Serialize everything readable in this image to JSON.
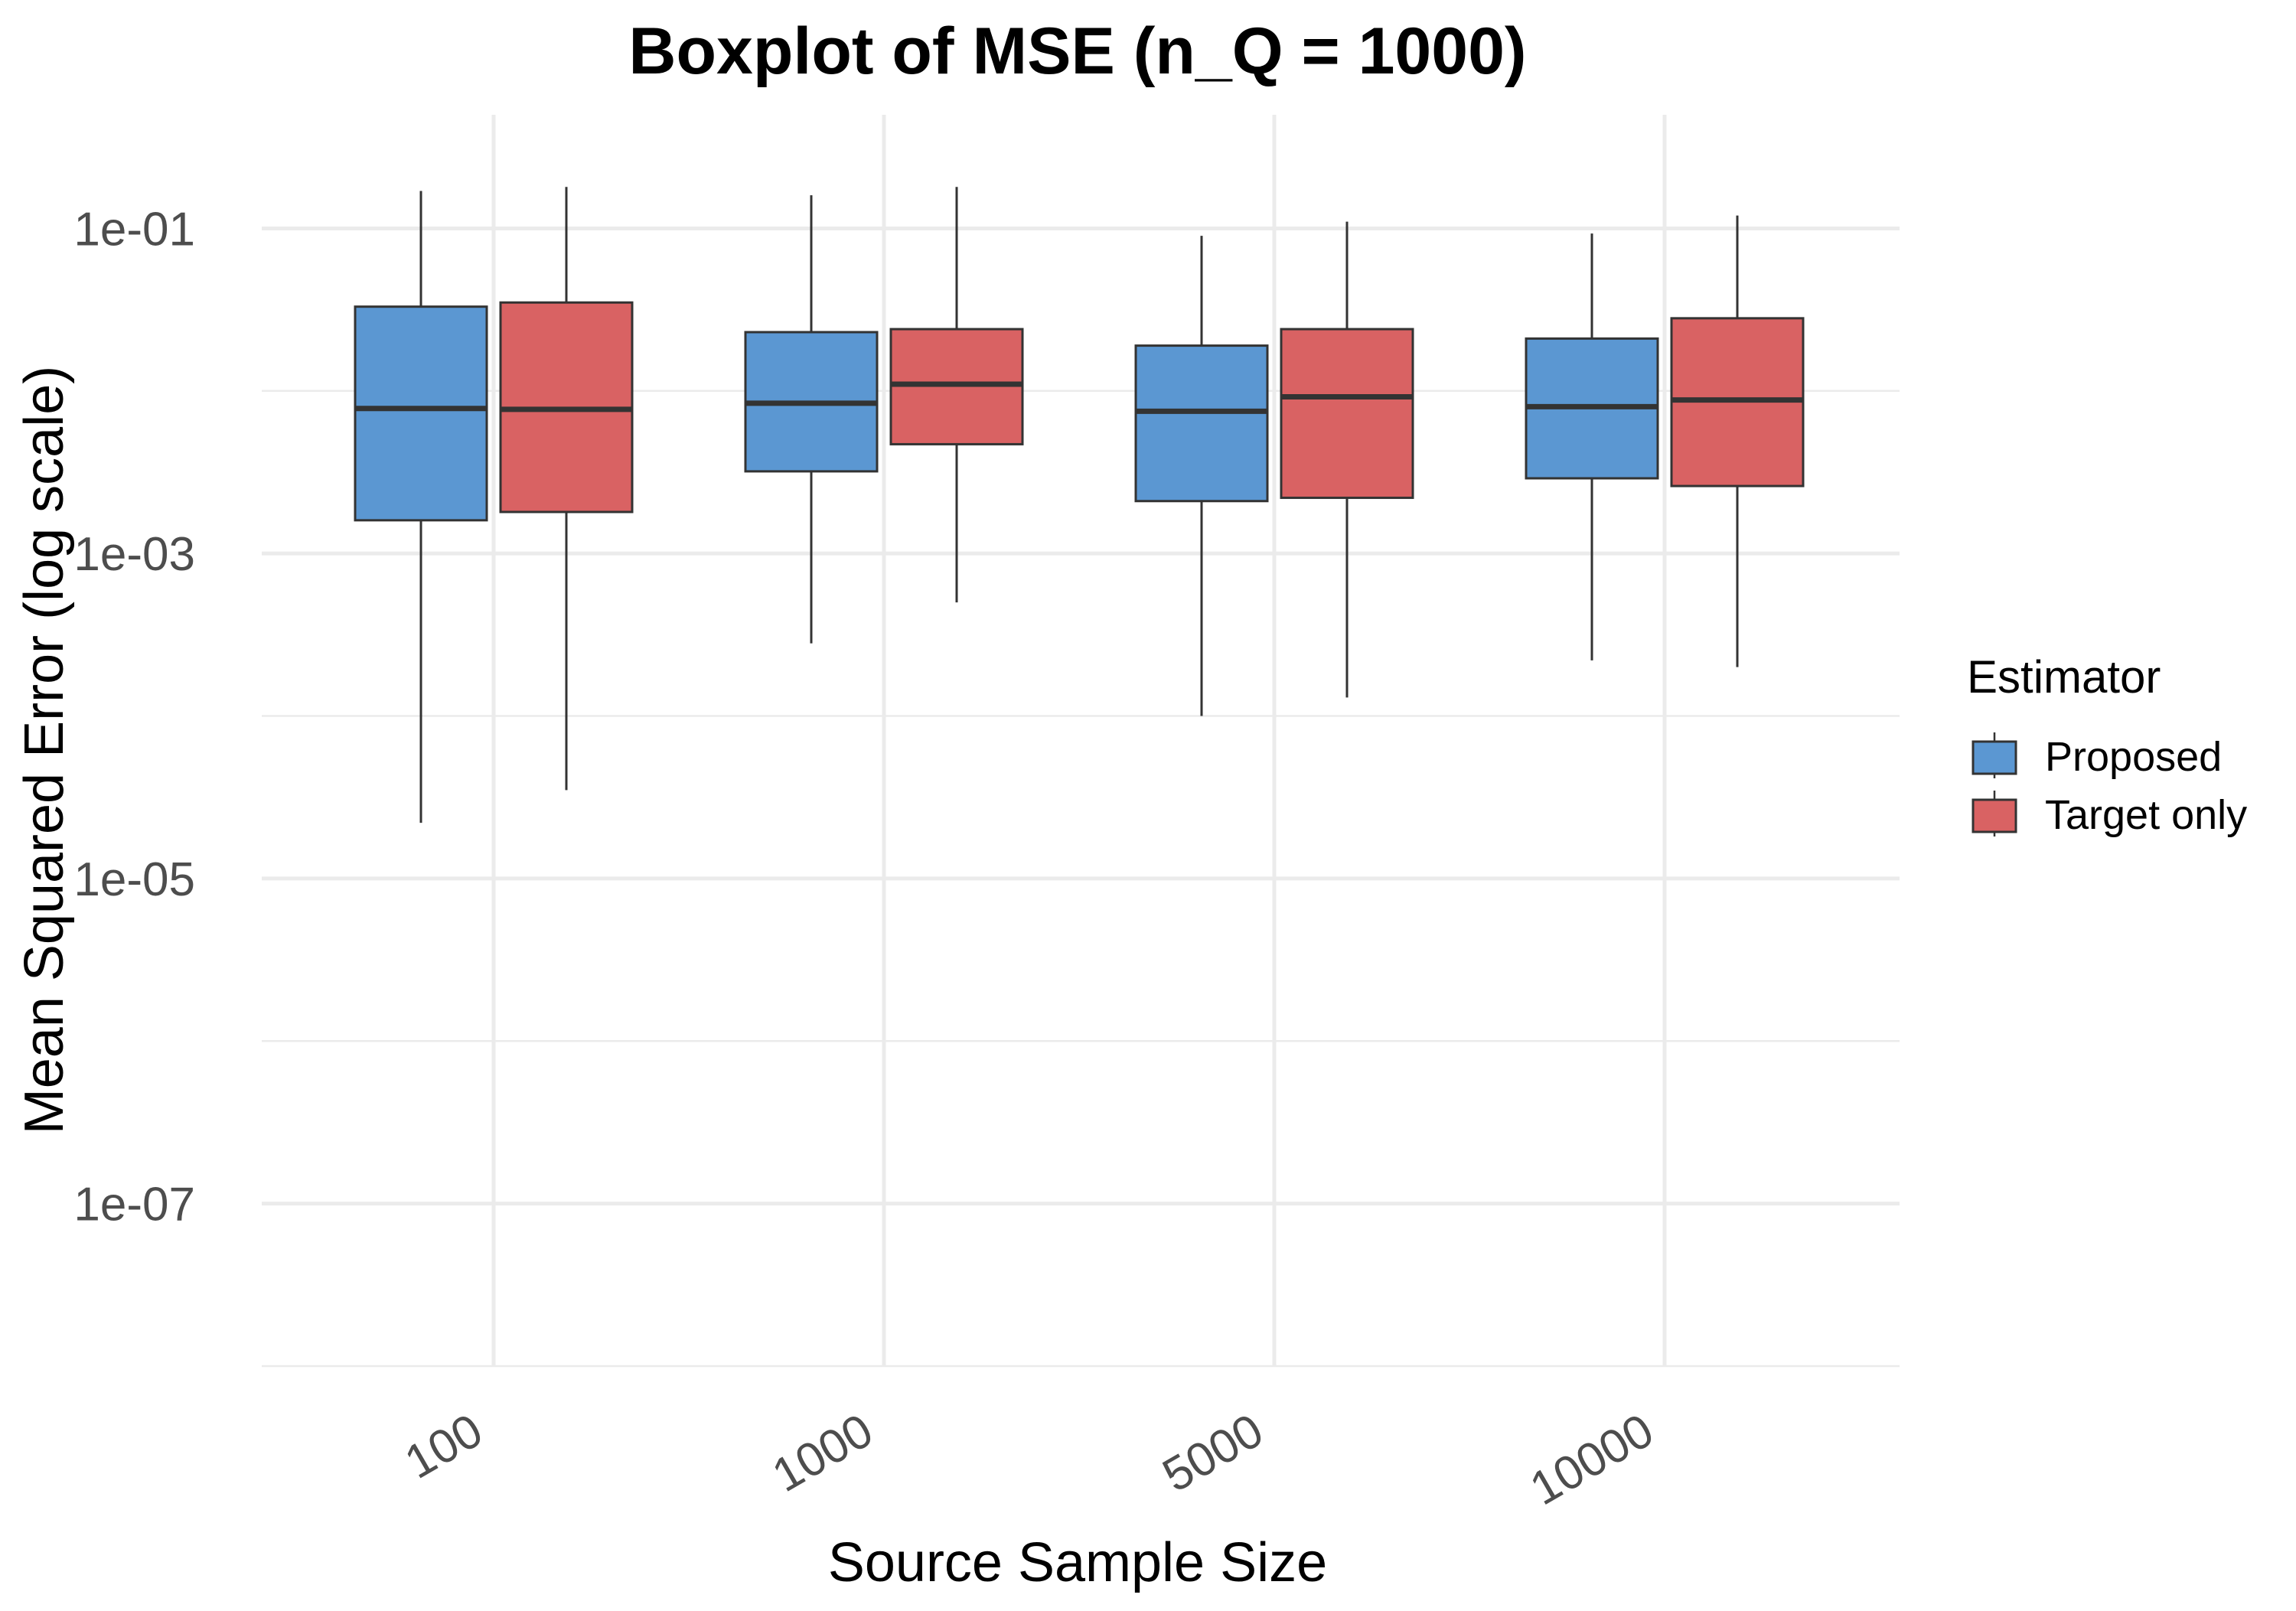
{
  "chart_data": {
    "type": "boxplot",
    "title": "Boxplot of MSE (n_Q = 1000)",
    "xlabel": "Source Sample Size",
    "ylabel": "Mean Squared Error (log scale)",
    "y_scale": "log10",
    "ylim": [
      1e-08,
      0.5
    ],
    "y_ticks": [
      {
        "value": 0.1,
        "label": "1e-01"
      },
      {
        "value": 0.001,
        "label": "1e-03"
      },
      {
        "value": 1e-05,
        "label": "1e-05"
      },
      {
        "value": 1e-07,
        "label": "1e-07"
      }
    ],
    "y_minor_grid": [
      0.01,
      0.0001,
      1e-06,
      1e-08
    ],
    "grid": true,
    "legend": {
      "title": "Estimator",
      "position": "right"
    },
    "categories": [
      "100",
      "1000",
      "5000",
      "10000"
    ],
    "series": [
      {
        "name": "Proposed",
        "color": "#5B97D2",
        "boxes": [
          {
            "min": 2.2e-05,
            "q1": 0.0016,
            "median": 0.0078,
            "q3": 0.033,
            "max": 0.17
          },
          {
            "min": 0.00028,
            "q1": 0.0032,
            "median": 0.0084,
            "q3": 0.023,
            "max": 0.16
          },
          {
            "min": 0.0001,
            "q1": 0.0021,
            "median": 0.0075,
            "q3": 0.019,
            "max": 0.09
          },
          {
            "min": 0.00022,
            "q1": 0.0029,
            "median": 0.008,
            "q3": 0.021,
            "max": 0.093
          }
        ]
      },
      {
        "name": "Target only",
        "color": "#D96263",
        "boxes": [
          {
            "min": 3.5e-05,
            "q1": 0.0018,
            "median": 0.0077,
            "q3": 0.035,
            "max": 0.18
          },
          {
            "min": 0.0005,
            "q1": 0.0047,
            "median": 0.011,
            "q3": 0.024,
            "max": 0.18
          },
          {
            "min": 0.00013,
            "q1": 0.0022,
            "median": 0.0092,
            "q3": 0.024,
            "max": 0.11
          },
          {
            "min": 0.0002,
            "q1": 0.0026,
            "median": 0.0088,
            "q3": 0.028,
            "max": 0.12
          }
        ]
      }
    ]
  }
}
